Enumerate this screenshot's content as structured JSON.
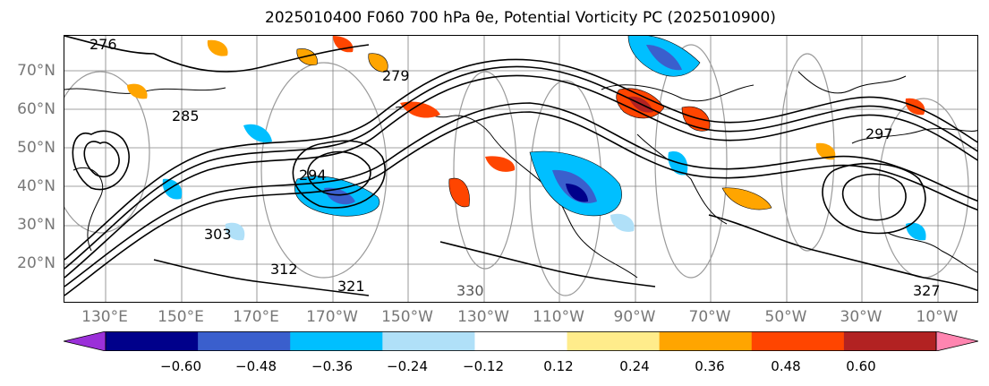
{
  "title": "2025010400 F060 700 hPa θe, Potential Vorticity PC (2025010900)",
  "map": {
    "lat_labels": [
      "70°N",
      "60°N",
      "50°N",
      "40°N",
      "30°N",
      "20°N"
    ],
    "lon_labels": [
      "130°E",
      "150°E",
      "170°E",
      "170°W",
      "150°W",
      "130°W",
      "110°W",
      "90°W",
      "70°W",
      "50°W",
      "30°W",
      "10°W"
    ],
    "contour_labels": [
      "276",
      "285",
      "294",
      "303",
      "312",
      "321",
      "330",
      "279",
      "297",
      "327"
    ],
    "colors": {
      "contour": "#000000",
      "grid": "#808080",
      "gray_contour": "#9a9a9a"
    }
  },
  "colorbar": {
    "tick_labels": [
      "−0.60",
      "−0.48",
      "−0.36",
      "−0.24",
      "−0.12",
      "0.12",
      "0.24",
      "0.36",
      "0.48",
      "0.60"
    ],
    "colors": [
      "#9b30d9",
      "#00008b",
      "#3a5fcd",
      "#00bfff",
      "#b0e0f8",
      "#ffffff",
      "#ffec8b",
      "#ffa500",
      "#ff4500",
      "#b22222",
      "#ff85b0"
    ]
  }
}
